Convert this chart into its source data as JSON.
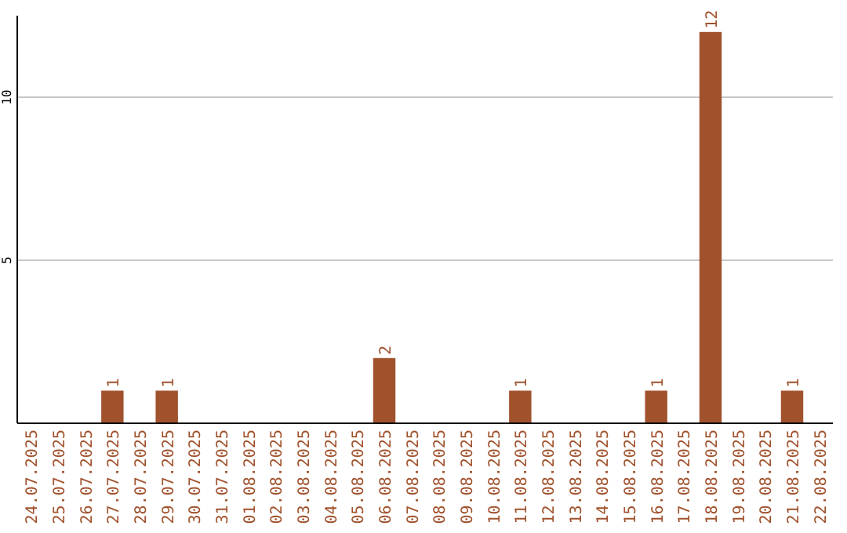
{
  "chart_data": {
    "type": "bar",
    "categories": [
      "24.07.2025",
      "25.07.2025",
      "26.07.2025",
      "27.07.2025",
      "28.07.2025",
      "29.07.2025",
      "30.07.2025",
      "31.07.2025",
      "01.08.2025",
      "02.08.2025",
      "03.08.2025",
      "04.08.2025",
      "05.08.2025",
      "06.08.2025",
      "07.08.2025",
      "08.08.2025",
      "09.08.2025",
      "10.08.2025",
      "11.08.2025",
      "12.08.2025",
      "13.08.2025",
      "14.08.2025",
      "15.08.2025",
      "16.08.2025",
      "17.08.2025",
      "18.08.2025",
      "19.08.2025",
      "20.08.2025",
      "21.08.2025",
      "22.08.2025"
    ],
    "values": [
      0,
      0,
      0,
      1,
      0,
      1,
      0,
      0,
      0,
      0,
      0,
      0,
      0,
      2,
      0,
      0,
      0,
      0,
      1,
      0,
      0,
      0,
      0,
      1,
      0,
      12,
      0,
      0,
      1,
      0
    ],
    "value_labels": [
      null,
      null,
      null,
      "1",
      null,
      "1",
      null,
      null,
      null,
      null,
      null,
      null,
      null,
      "2",
      null,
      null,
      null,
      null,
      "1",
      null,
      null,
      null,
      null,
      "1",
      null,
      "12",
      null,
      null,
      "1",
      null
    ],
    "color": "#a0522d",
    "ylim": [
      0,
      12.5
    ],
    "yticks": [
      5,
      10
    ],
    "grid": "y"
  }
}
